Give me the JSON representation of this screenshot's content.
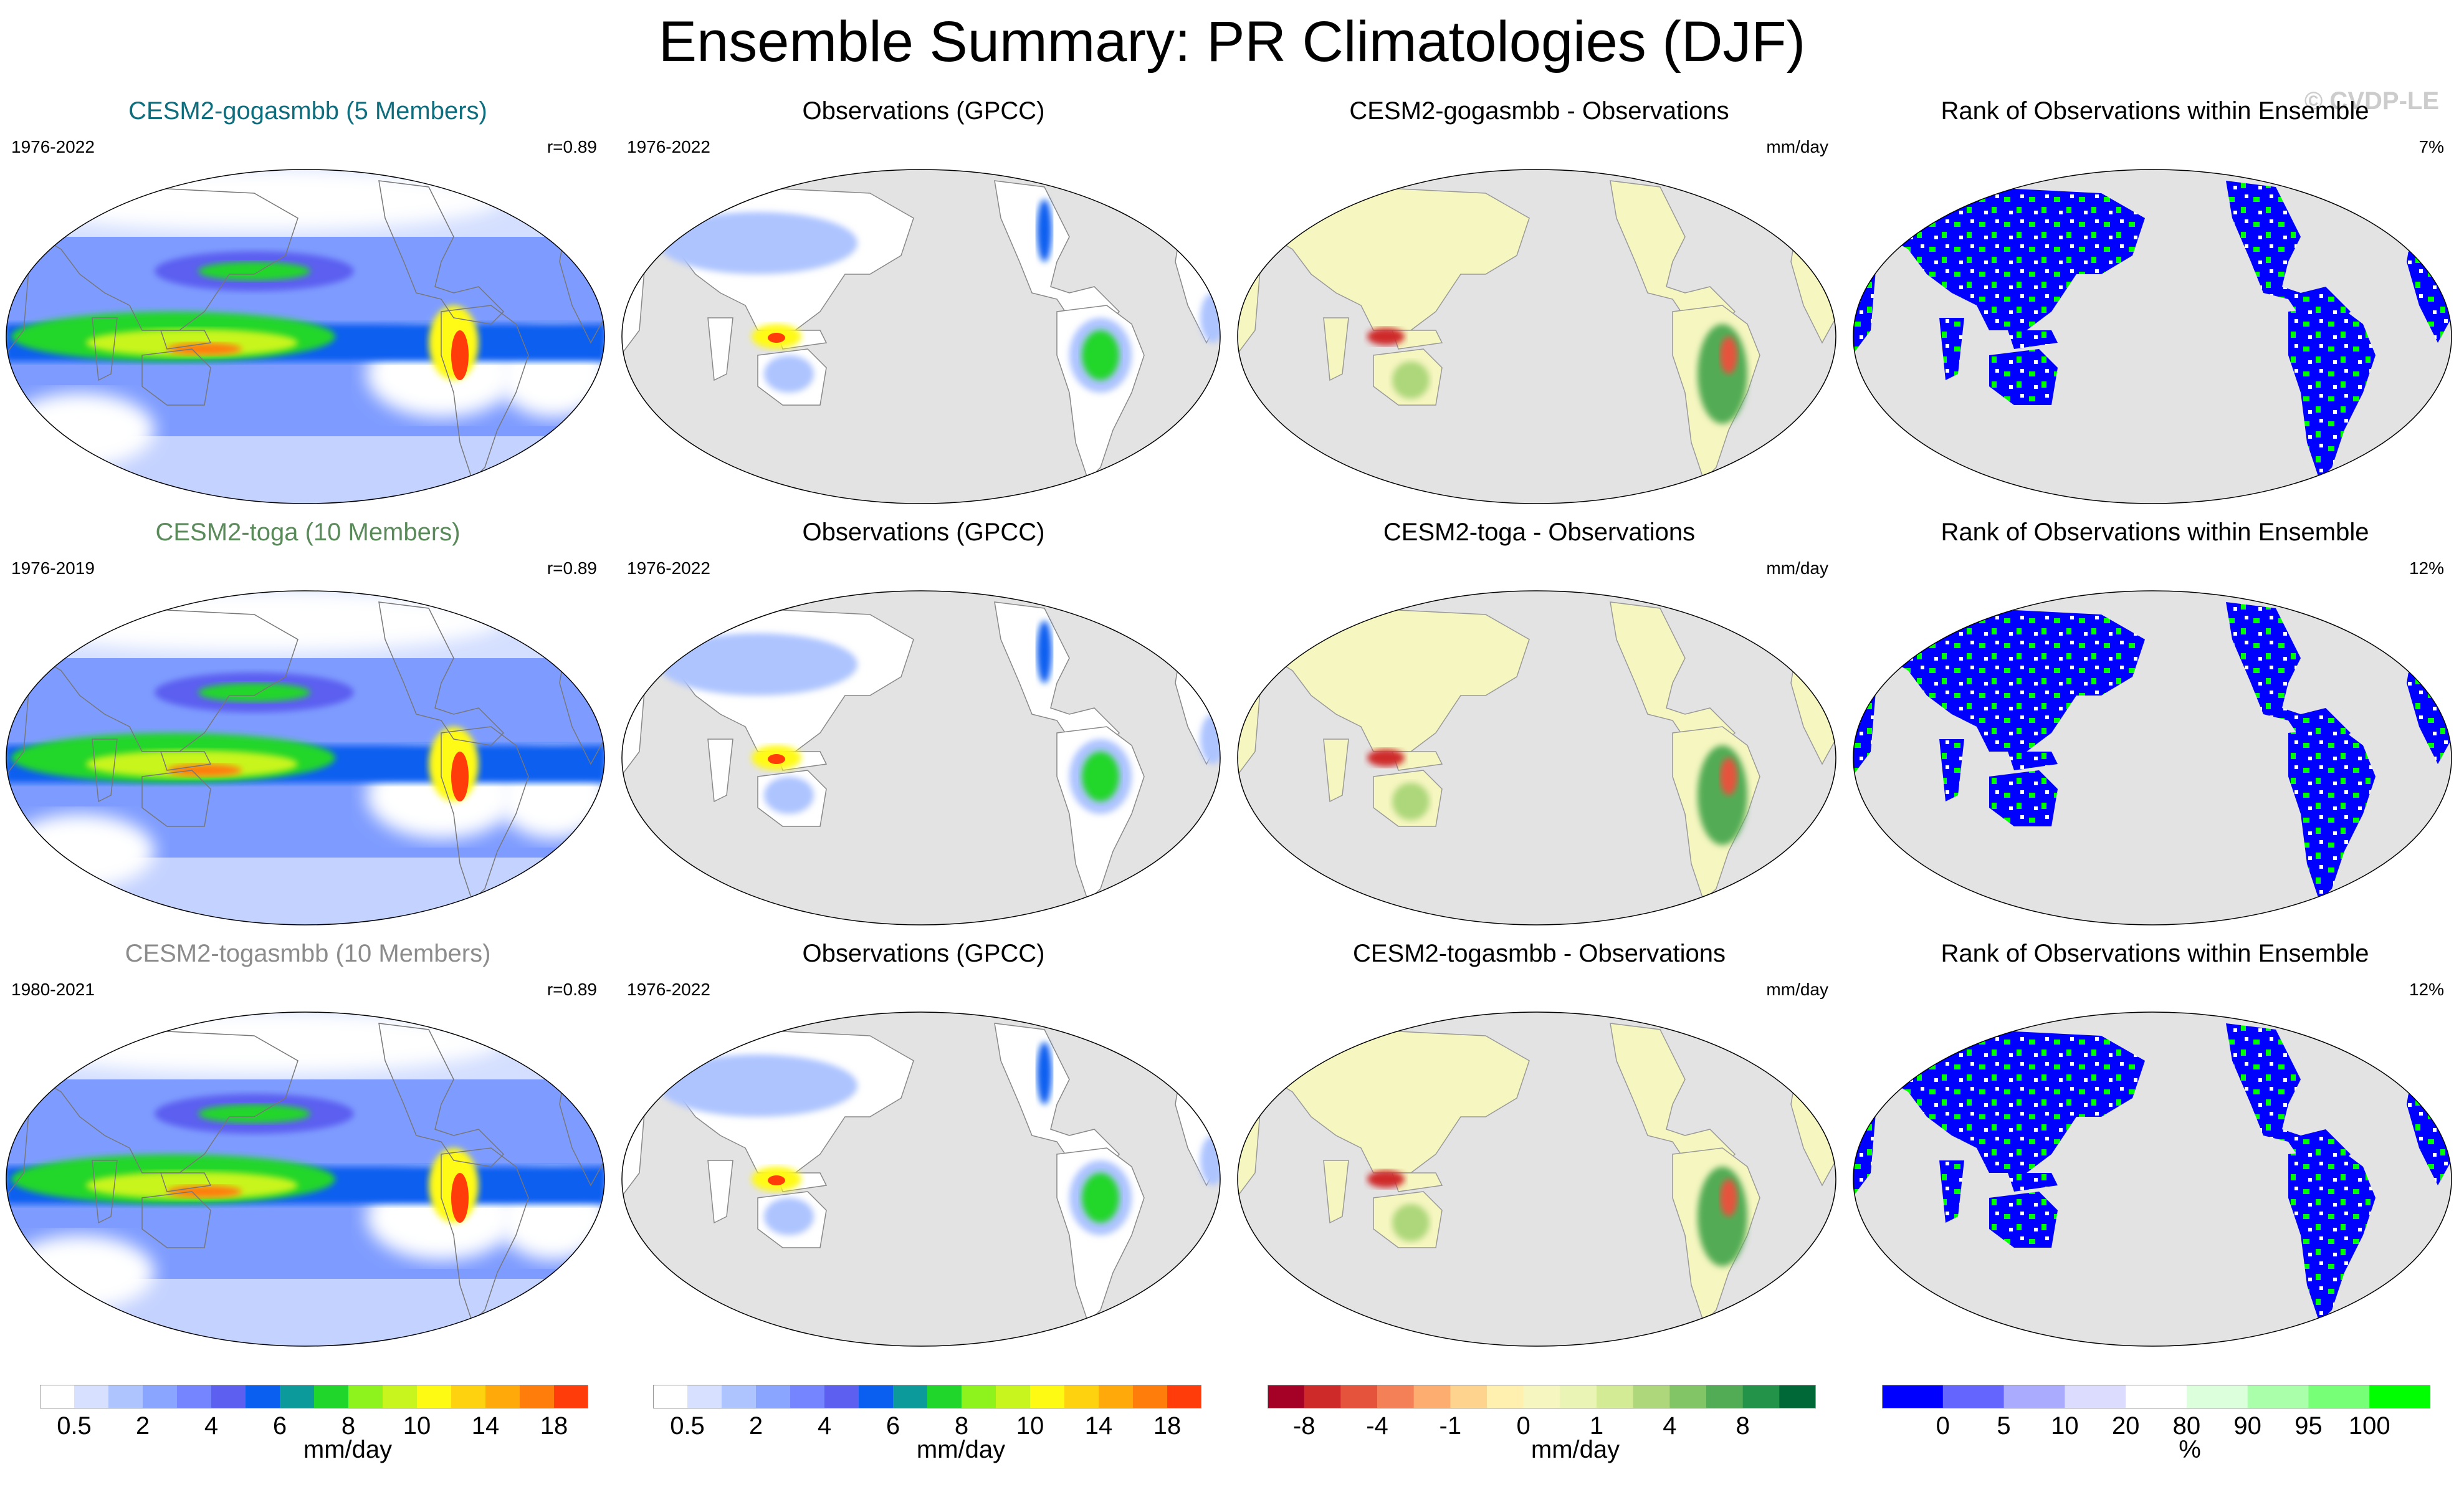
{
  "title": "Ensemble Summary: PR Climatologies (DJF)",
  "watermark": "© CVDP-LE",
  "colors": {
    "ocean_gray": "#e3e3e3",
    "land_gray": "#e3e3e3",
    "title_row1": "#0f6e7e",
    "title_row2": "#5a8a5a",
    "title_row3": "#8c8c8c",
    "rank_blue": "#0000ff",
    "rank_green": "#00ff00"
  },
  "rows": [
    {
      "model": {
        "title": "CESM2-gogasmbb (5 Members)",
        "years": "1976-2022",
        "r": "r=0.89"
      },
      "obs": {
        "title": "Observations (GPCC)",
        "years": "1976-2022"
      },
      "diff": {
        "title": "CESM2-gogasmbb - Observations",
        "unit": "mm/day"
      },
      "rank": {
        "title": "Rank of Observations within Ensemble",
        "pct": "7%"
      }
    },
    {
      "model": {
        "title": "CESM2-toga (10 Members)",
        "years": "1976-2019",
        "r": "r=0.89"
      },
      "obs": {
        "title": "Observations (GPCC)",
        "years": "1976-2022"
      },
      "diff": {
        "title": "CESM2-toga - Observations",
        "unit": "mm/day"
      },
      "rank": {
        "title": "Rank of Observations within Ensemble",
        "pct": "12%"
      }
    },
    {
      "model": {
        "title": "CESM2-togasmbb (10 Members)",
        "years": "1980-2021",
        "r": "r=0.89"
      },
      "obs": {
        "title": "Observations (GPCC)",
        "years": "1976-2022"
      },
      "diff": {
        "title": "CESM2-togasmbb - Observations",
        "unit": "mm/day"
      },
      "rank": {
        "title": "Rank of Observations within Ensemble",
        "pct": "12%"
      }
    }
  ],
  "colorbars": [
    {
      "unit": "mm/day",
      "colors": [
        "#ffffff",
        "#d7e1ff",
        "#adc4ff",
        "#8aa5ff",
        "#7584ff",
        "#5c5ff0",
        "#0a5ef0",
        "#0c9a9a",
        "#21d62a",
        "#8ef21d",
        "#c8f51e",
        "#fffa14",
        "#ffd20f",
        "#ffaa0a",
        "#ff7d0a",
        "#ff3c0a"
      ],
      "ticks": [
        "0.5",
        "2",
        "4",
        "6",
        "8",
        "10",
        "14",
        "18"
      ]
    },
    {
      "unit": "mm/day",
      "colors": [
        "#ffffff",
        "#d7e1ff",
        "#adc4ff",
        "#8aa5ff",
        "#7584ff",
        "#5c5ff0",
        "#0a5ef0",
        "#0c9a9a",
        "#21d62a",
        "#8ef21d",
        "#c8f51e",
        "#fffa14",
        "#ffd20f",
        "#ffaa0a",
        "#ff7d0a",
        "#ff3c0a"
      ],
      "ticks": [
        "0.5",
        "2",
        "4",
        "6",
        "8",
        "10",
        "14",
        "18"
      ]
    },
    {
      "unit": "mm/day",
      "colors": [
        "#a50026",
        "#cf2a2a",
        "#e6533c",
        "#f48058",
        "#fcad6f",
        "#fdd38d",
        "#fff0b0",
        "#f6f6c0",
        "#eaf4b4",
        "#d4eb96",
        "#add77a",
        "#82c566",
        "#52ac55",
        "#24934a",
        "#006837"
      ],
      "ticks": [
        "-8",
        "-4",
        "-1",
        "0",
        "1",
        "4",
        "8"
      ],
      "tick_positions": [
        1,
        3,
        5,
        7,
        9,
        11,
        13
      ]
    },
    {
      "unit": "%",
      "colors": [
        "#0000ff",
        "#6464ff",
        "#aaaaff",
        "#dcdcff",
        "#ffffff",
        "#dcffdc",
        "#aaffaa",
        "#78ff78",
        "#00ff00"
      ],
      "ticks": [
        "0",
        "5",
        "10",
        "20",
        "80",
        "90",
        "95",
        "100"
      ],
      "tick_positions": [
        1,
        2,
        3,
        4,
        5,
        6,
        7,
        8
      ]
    }
  ]
}
